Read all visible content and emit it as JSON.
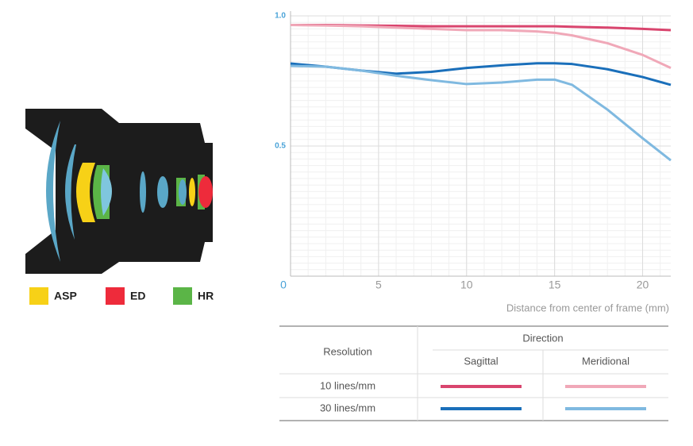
{
  "chart_data": {
    "type": "line",
    "x": [
      0,
      2,
      4,
      6,
      8,
      10,
      12,
      14,
      15,
      16,
      18,
      20,
      21.6
    ],
    "series": [
      {
        "color": "#d9456e",
        "values": [
          0.965,
          0.965,
          0.963,
          0.962,
          0.96,
          0.96,
          0.96,
          0.96,
          0.96,
          0.958,
          0.955,
          0.95,
          0.945
        ]
      },
      {
        "color": "#f0a8b8",
        "values": [
          0.965,
          0.963,
          0.96,
          0.955,
          0.95,
          0.945,
          0.945,
          0.94,
          0.935,
          0.925,
          0.895,
          0.85,
          0.8
        ]
      },
      {
        "color": "#1a6fba",
        "values": [
          0.817,
          0.805,
          0.79,
          0.778,
          0.785,
          0.8,
          0.81,
          0.818,
          0.818,
          0.815,
          0.795,
          0.765,
          0.735
        ]
      },
      {
        "color": "#7fb9e0",
        "values": [
          0.808,
          0.805,
          0.79,
          0.77,
          0.753,
          0.738,
          0.744,
          0.755,
          0.755,
          0.735,
          0.64,
          0.53,
          0.445
        ]
      }
    ],
    "x_label": "Distance from center of frame (mm)",
    "xlim": [
      0,
      21.6
    ],
    "xticks": [
      5,
      10,
      15,
      20
    ],
    "ylim": [
      0,
      1
    ],
    "yticks": [
      0,
      0.5,
      {
        "value": 1,
        "label": "1.0"
      }
    ],
    "grid": true,
    "legend_table": {
      "resolution_header": "Resolution",
      "direction_header": "Direction",
      "columns": [
        "Sagittal",
        "Meridional"
      ],
      "rows": [
        "10 lines/mm",
        "30 lines/mm"
      ]
    }
  },
  "lens_key": [
    {
      "label": "ASP",
      "color": "#f7d117"
    },
    {
      "label": "ED",
      "color": "#ee2b3b"
    },
    {
      "label": "HR",
      "color": "#5bb547"
    }
  ]
}
